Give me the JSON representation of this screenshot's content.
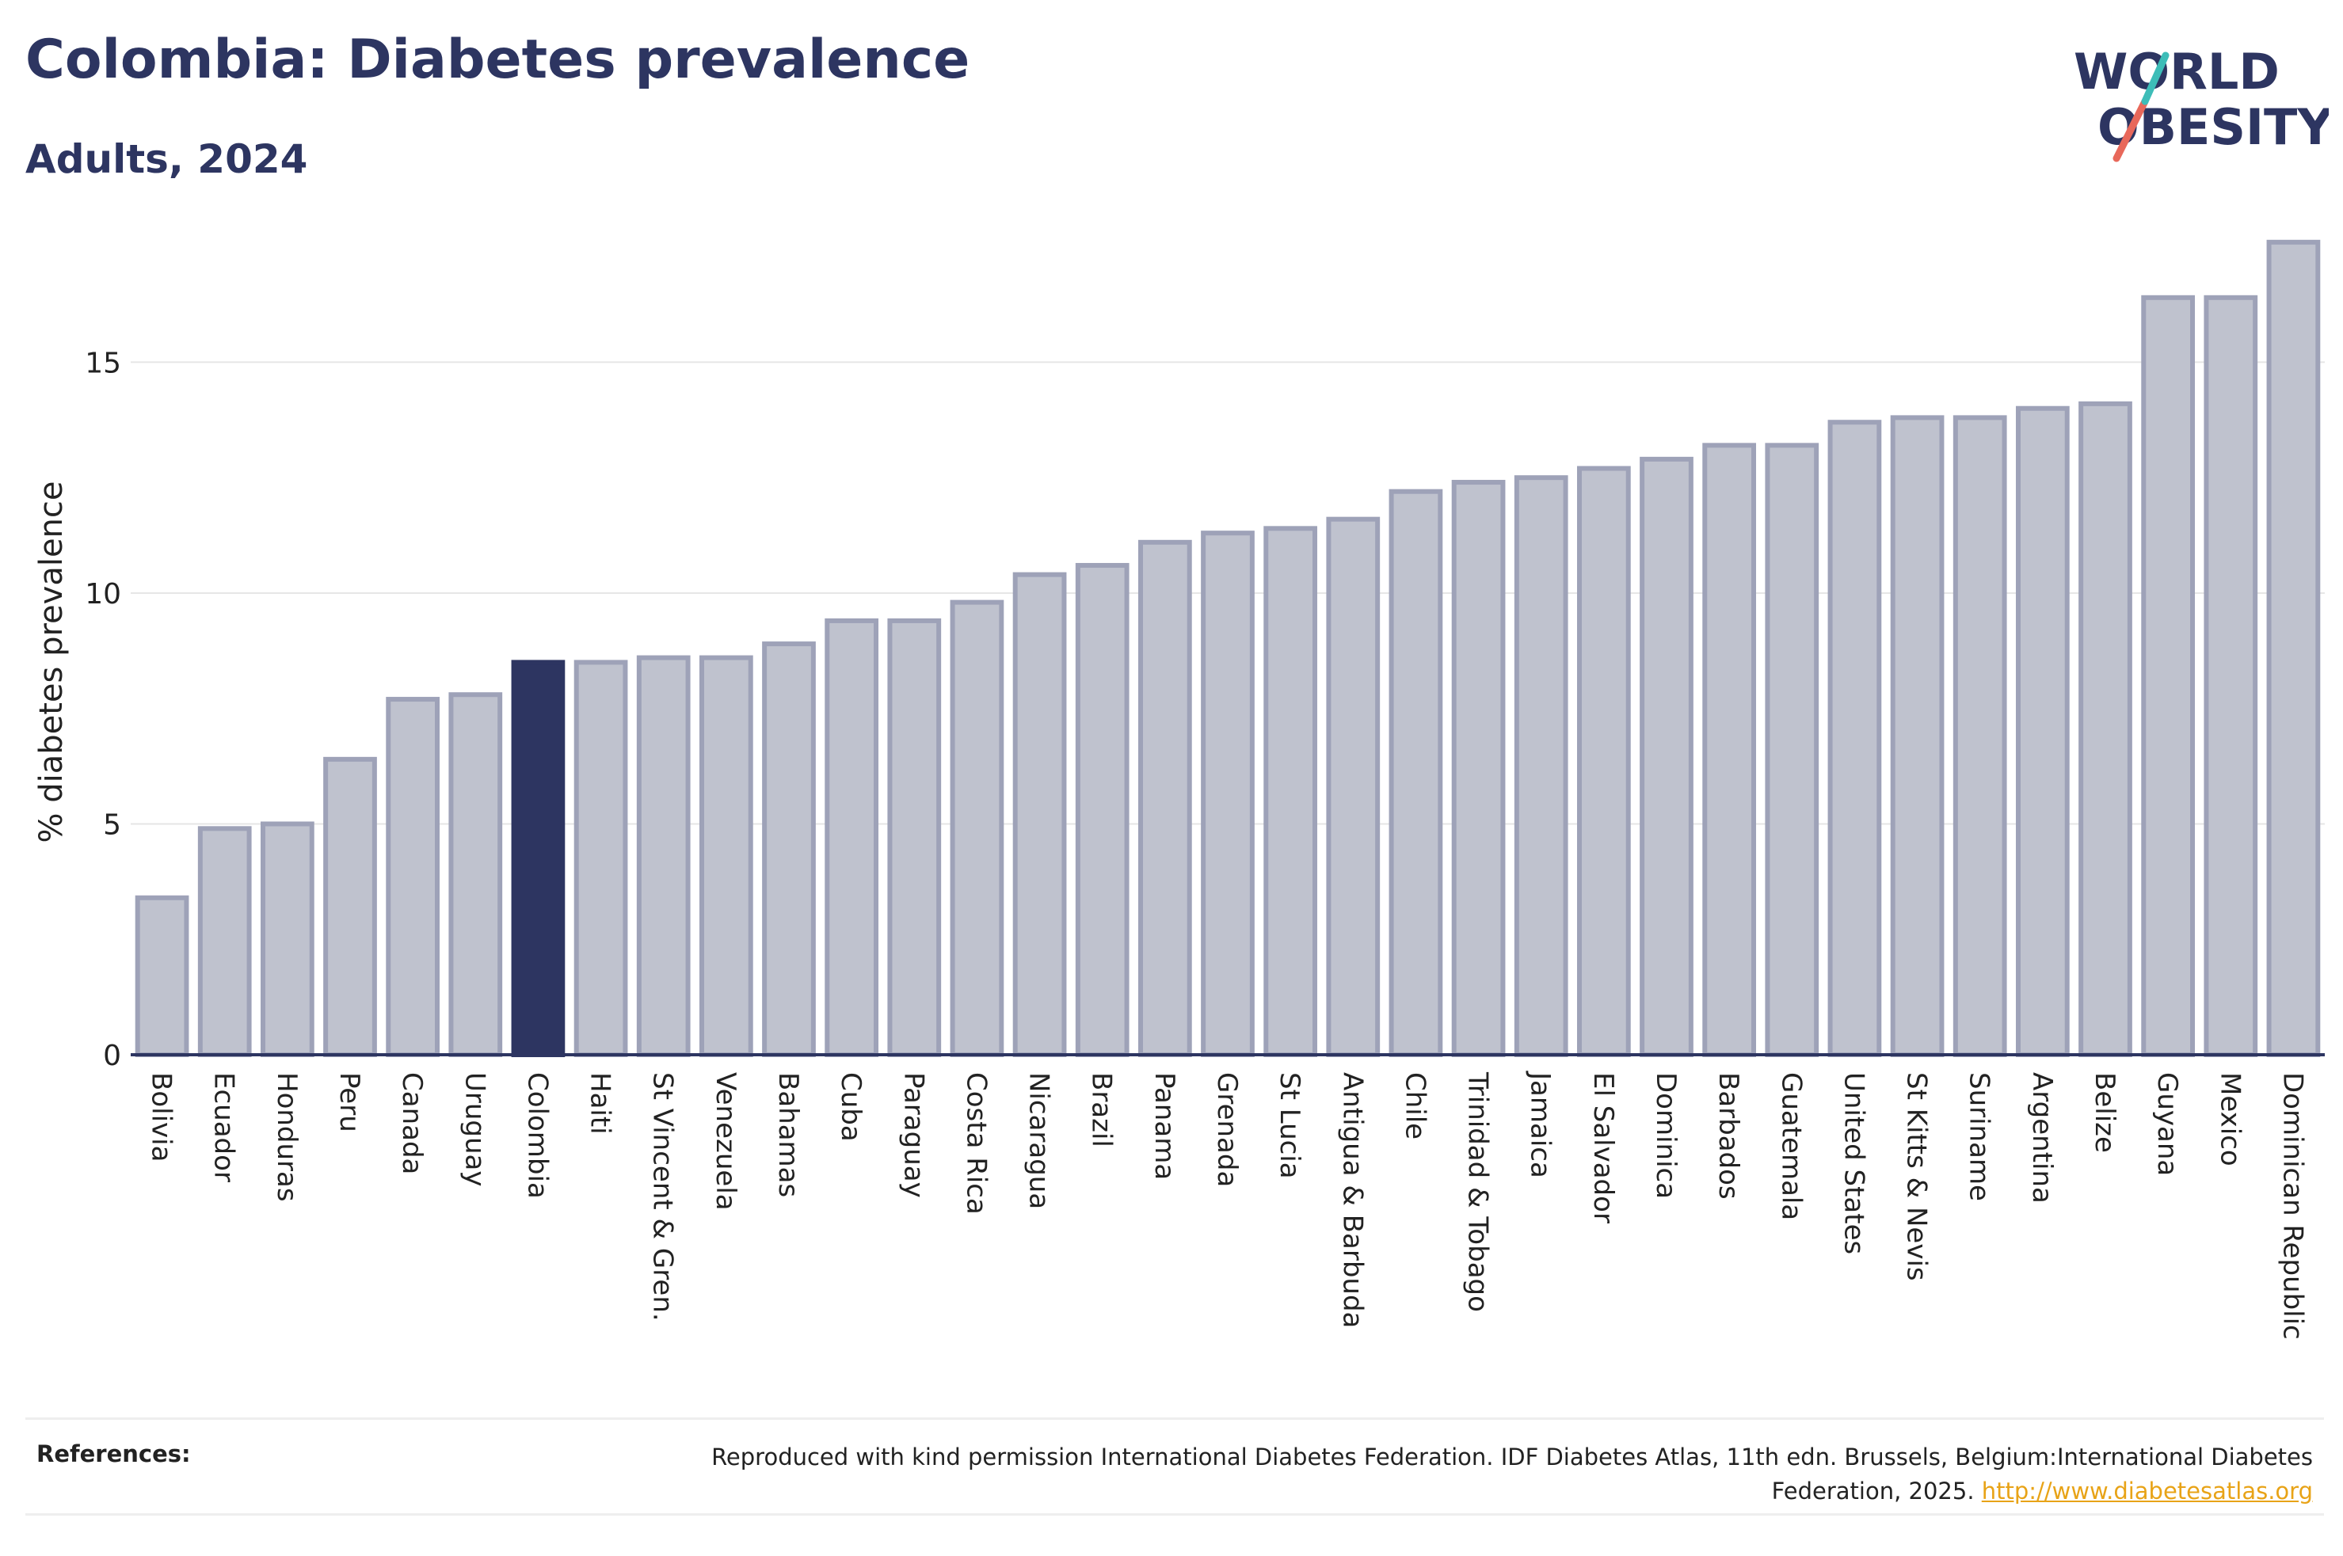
{
  "header": {
    "title": "Colombia: Diabetes prevalence",
    "subtitle": "Adults, 2024"
  },
  "logo": {
    "line1": "WORLD",
    "line2": "OBESITY"
  },
  "footer": {
    "label": "References:",
    "text": "Reproduced with kind permission International Diabetes Federation. IDF Diabetes Atlas, 11th edn. Brussels, Belgium:International Diabetes Federation, 2025.",
    "link": "http://www.diabetesatlas.org"
  },
  "colors": {
    "highlight": "#2d3561",
    "bar_fill": "#bfc2ce",
    "bar_stroke": "#9ea2b8",
    "grid": "#e6e6e6",
    "link": "#e8a317"
  },
  "chart_data": {
    "type": "bar",
    "title": "Colombia: Diabetes prevalence",
    "subtitle": "Adults, 2024",
    "xlabel": "",
    "ylabel": "% diabetes prevalence",
    "ylim": [
      0,
      17.7
    ],
    "yticks": [
      0,
      5,
      10,
      15
    ],
    "grid": true,
    "highlight": "Colombia",
    "categories": [
      "Bolivia",
      "Ecuador",
      "Honduras",
      "Peru",
      "Canada",
      "Uruguay",
      "Colombia",
      "Haiti",
      "St Vincent & Gren.",
      "Venezuela",
      "Bahamas",
      "Cuba",
      "Paraguay",
      "Costa Rica",
      "Nicaragua",
      "Brazil",
      "Panama",
      "Grenada",
      "St Lucia",
      "Antigua & Barbuda",
      "Chile",
      "Trinidad & Tobago",
      "Jamaica",
      "El Salvador",
      "Dominica",
      "Barbados",
      "Guatemala",
      "United States",
      "St Kitts & Nevis",
      "Suriname",
      "Argentina",
      "Belize",
      "Guyana",
      "Mexico",
      "Dominican Republic"
    ],
    "values": [
      3.4,
      4.9,
      5.0,
      6.4,
      7.7,
      7.8,
      8.5,
      8.5,
      8.6,
      8.6,
      8.9,
      9.4,
      9.4,
      9.8,
      10.4,
      10.6,
      11.1,
      11.3,
      11.4,
      11.6,
      12.2,
      12.4,
      12.5,
      12.7,
      12.9,
      13.2,
      13.2,
      13.7,
      13.8,
      13.8,
      14.0,
      14.1,
      16.4,
      16.4,
      17.6
    ]
  }
}
